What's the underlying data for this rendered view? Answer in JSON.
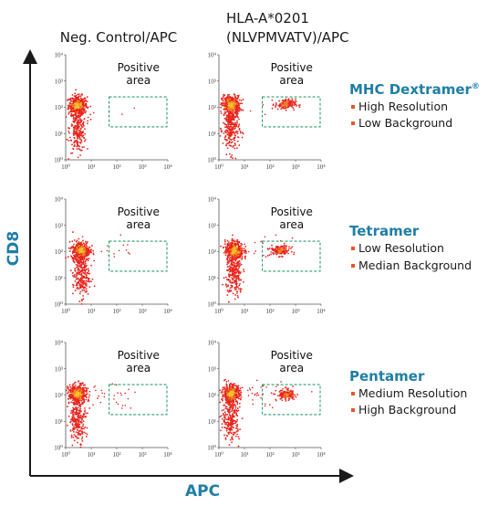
{
  "columns": [
    "Neg. Control/APC",
    "HLA-A*0201",
    "(NLVPMVATV)/APC"
  ],
  "y_axis_label": "CD8",
  "x_axis_label": "APC",
  "tick_labels": [
    "10⁰",
    "10¹",
    "10²",
    "10³",
    "10⁴"
  ],
  "gate_label_lines": [
    "Positive",
    "area"
  ],
  "rows": [
    {
      "title": "MHC Dextramer",
      "title_mark": "®",
      "items": [
        "High Resolution",
        "Low Background"
      ]
    },
    {
      "title": "Tetramer",
      "title_mark": "",
      "items": [
        "Low Resolution",
        "Median Background"
      ]
    },
    {
      "title": "Pentamer",
      "title_mark": "",
      "items": [
        "Medium Resolution",
        "High Background"
      ]
    }
  ],
  "colors": {
    "title": "#1f7ea6",
    "bullet": "#e8562a",
    "gate": "#2e9e6e",
    "dots": "#e8241c",
    "core": "#f4c030"
  },
  "chart_data": {
    "type": "scatter",
    "x_scale": "log",
    "y_scale": "log",
    "xlim": [
      1,
      10000
    ],
    "ylim": [
      1,
      10000
    ],
    "gate": {
      "x": [
        50,
        10000
      ],
      "y": [
        18,
        250
      ]
    },
    "panels": [
      {
        "row": 0,
        "col": 0,
        "main_cluster": {
          "x": 3,
          "y": 120
        },
        "positive_cluster": null,
        "background_level": 0.1
      },
      {
        "row": 0,
        "col": 1,
        "main_cluster": {
          "x": 3,
          "y": 120
        },
        "positive_cluster": {
          "x": 400,
          "y": 130
        },
        "background_level": 0.1
      },
      {
        "row": 1,
        "col": 0,
        "main_cluster": {
          "x": 4,
          "y": 110
        },
        "positive_cluster": null,
        "background_level": 0.4
      },
      {
        "row": 1,
        "col": 1,
        "main_cluster": {
          "x": 4,
          "y": 110
        },
        "positive_cluster": {
          "x": 250,
          "y": 110
        },
        "background_level": 0.5
      },
      {
        "row": 2,
        "col": 0,
        "main_cluster": {
          "x": 3,
          "y": 110
        },
        "positive_cluster": null,
        "background_level": 0.7
      },
      {
        "row": 2,
        "col": 1,
        "main_cluster": {
          "x": 3,
          "y": 110
        },
        "positive_cluster": {
          "x": 450,
          "y": 100
        },
        "background_level": 0.9
      }
    ]
  }
}
